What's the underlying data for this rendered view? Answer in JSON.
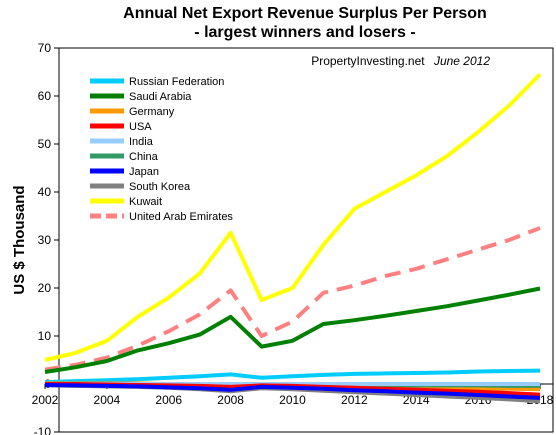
{
  "chart_data": {
    "type": "line",
    "title": "Annual Net Export Revenue Surplus Per Person",
    "subtitle": "- largest winners and losers -",
    "ylabel": "US $ Thousand",
    "xlabel": "",
    "source": "PropertyInvesting.net",
    "source_date": "June 2012",
    "ylim": [
      -10,
      70
    ],
    "xlim": [
      2002,
      2018
    ],
    "y_ticks": [
      "-10",
      "0",
      "10",
      "20",
      "30",
      "40",
      "50",
      "60",
      "70"
    ],
    "x_ticks": [
      "2002",
      "2004",
      "2006",
      "2008",
      "2010",
      "2012",
      "2014",
      "2016",
      "2018"
    ],
    "grid": false,
    "legend_position": "top-left",
    "x": [
      2002,
      2003,
      2004,
      2005,
      2006,
      2007,
      2008,
      2009,
      2010,
      2011,
      2012,
      2013,
      2014,
      2015,
      2016,
      2017,
      2018
    ],
    "series": [
      {
        "name": "Russian Federation",
        "color": "#00ccff",
        "dash": false,
        "values": [
          0.4,
          0.6,
          0.8,
          1.0,
          1.3,
          1.6,
          2.0,
          1.3,
          1.6,
          1.9,
          2.1,
          2.2,
          2.3,
          2.4,
          2.6,
          2.7,
          2.8
        ]
      },
      {
        "name": "Saudi Arabia",
        "color": "#008000",
        "dash": false,
        "values": [
          2.5,
          3.5,
          4.8,
          7.0,
          8.5,
          10.3,
          14.0,
          7.8,
          9.0,
          12.5,
          13.3,
          14.2,
          15.2,
          16.2,
          17.4,
          18.6,
          19.9
        ]
      },
      {
        "name": "Germany",
        "color": "#ff9900",
        "dash": false,
        "values": [
          0.1,
          0.1,
          0.1,
          0.1,
          0.0,
          -0.1,
          -0.2,
          -0.3,
          -0.3,
          -0.4,
          -0.5,
          -0.6,
          -0.7,
          -0.8,
          -0.9,
          -1.0,
          -1.1
        ]
      },
      {
        "name": "USA",
        "color": "#ff0000",
        "dash": false,
        "values": [
          0.0,
          0.0,
          -0.1,
          -0.2,
          -0.3,
          -0.4,
          -0.6,
          -0.3,
          -0.4,
          -0.6,
          -0.8,
          -1.0,
          -1.2,
          -1.4,
          -1.6,
          -1.9,
          -2.2
        ]
      },
      {
        "name": "India",
        "color": "#99ccff",
        "dash": false,
        "values": [
          0.0,
          0.0,
          0.0,
          0.0,
          0.0,
          0.0,
          0.0,
          0.0,
          0.0,
          0.0,
          0.0,
          0.0,
          0.0,
          0.0,
          0.0,
          0.0,
          0.0
        ]
      },
      {
        "name": "China",
        "color": "#339966",
        "dash": false,
        "values": [
          0.0,
          0.0,
          0.0,
          0.0,
          0.0,
          -0.1,
          -0.1,
          -0.1,
          -0.1,
          -0.2,
          -0.2,
          -0.2,
          -0.3,
          -0.3,
          -0.3,
          -0.4,
          -0.4
        ]
      },
      {
        "name": "Japan",
        "color": "#0000ff",
        "dash": false,
        "values": [
          -0.2,
          -0.3,
          -0.4,
          -0.5,
          -0.7,
          -0.9,
          -1.2,
          -0.6,
          -0.8,
          -1.0,
          -1.3,
          -1.5,
          -1.8,
          -2.0,
          -2.3,
          -2.6,
          -2.9
        ]
      },
      {
        "name": "South Korea",
        "color": "#808080",
        "dash": false,
        "values": [
          -0.3,
          -0.4,
          -0.5,
          -0.6,
          -0.8,
          -1.1,
          -1.5,
          -0.9,
          -1.1,
          -1.4,
          -1.7,
          -2.0,
          -2.3,
          -2.6,
          -2.9,
          -3.2,
          -3.6
        ]
      },
      {
        "name": "Kuwait",
        "color": "#ffff00",
        "dash": false,
        "values": [
          5.0,
          6.5,
          9.0,
          14.0,
          18.0,
          23.0,
          31.5,
          17.5,
          20.0,
          29.0,
          36.5,
          40.0,
          43.5,
          47.5,
          52.5,
          58.0,
          64.5
        ]
      },
      {
        "name": "United Arab Emirates",
        "color": "#ff8080",
        "dash": true,
        "values": [
          3.0,
          4.0,
          5.5,
          8.0,
          11.0,
          14.5,
          19.5,
          10.0,
          13.0,
          19.0,
          20.5,
          22.5,
          24.0,
          26.0,
          28.0,
          30.0,
          32.5
        ]
      }
    ]
  }
}
